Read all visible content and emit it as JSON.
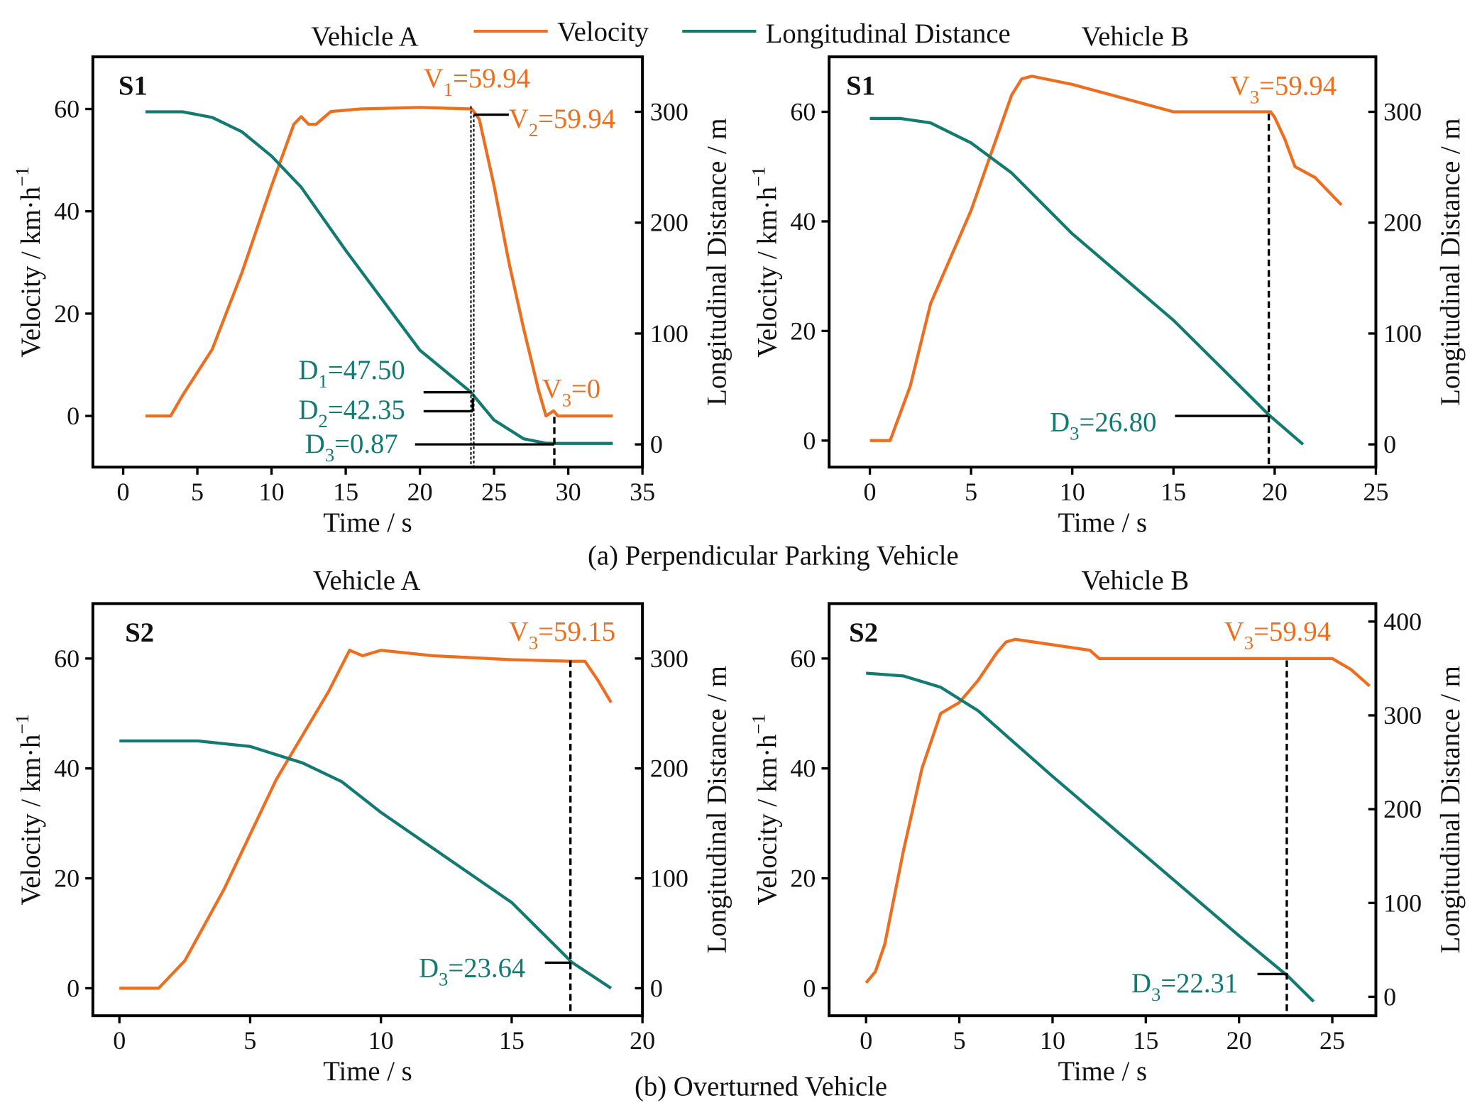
{
  "colors": {
    "velocity": "#EE6E1F",
    "distance": "#137A72",
    "axis": "#000000"
  },
  "legend": {
    "velocity": "Velocity",
    "distance": "Longitudinal Distance"
  },
  "captions": {
    "a": "(a) Perpendicular Parking Vehicle",
    "b": "(b) Overturned Vehicle"
  },
  "chart_data": [
    {
      "type": "line",
      "title": "Vehicle A",
      "scenario": "S1",
      "xlabel": "Time / s",
      "ylabel": "Velocity / km·h",
      "ylabel_sup": "−1",
      "y2label": "Longitudinal Distance / m",
      "xlim": [
        0,
        35
      ],
      "ylim": [
        0,
        60
      ],
      "y2lim": [
        0,
        300
      ],
      "xticks": [
        0,
        5,
        10,
        15,
        20,
        25,
        30,
        35
      ],
      "yticks": [
        0,
        20,
        40,
        60
      ],
      "y2ticks": [
        0,
        100,
        200,
        300
      ],
      "series": [
        {
          "name": "Velocity",
          "axis": "left",
          "points": [
            [
              1.5,
              0
            ],
            [
              3.2,
              0
            ],
            [
              4,
              4
            ],
            [
              6,
              13
            ],
            [
              8,
              28
            ],
            [
              10,
              45
            ],
            [
              11.5,
              57
            ],
            [
              12,
              58.5
            ],
            [
              12.5,
              57
            ],
            [
              13,
              57
            ],
            [
              14,
              59.5
            ],
            [
              16,
              60
            ],
            [
              20,
              60.3
            ],
            [
              23.5,
              60
            ],
            [
              24,
              58
            ],
            [
              25,
              45
            ],
            [
              26,
              30
            ],
            [
              27,
              17
            ],
            [
              28,
              5
            ],
            [
              28.5,
              0
            ],
            [
              29,
              1
            ],
            [
              29.3,
              0
            ],
            [
              33,
              0
            ]
          ]
        },
        {
          "name": "Longitudinal Distance",
          "axis": "right",
          "points": [
            [
              1.5,
              300
            ],
            [
              4,
              300
            ],
            [
              6,
              295
            ],
            [
              8,
              282
            ],
            [
              10,
              260
            ],
            [
              12,
              232
            ],
            [
              15,
              175
            ],
            [
              20,
              85
            ],
            [
              23.4,
              47.5
            ],
            [
              25,
              22
            ],
            [
              27,
              5
            ],
            [
              28.5,
              1
            ],
            [
              29.3,
              0.87
            ],
            [
              33,
              0.87
            ]
          ]
        }
      ],
      "annotations": [
        {
          "main": "V",
          "sub": "1",
          "rest": "=59.94",
          "kind": "velocity"
        },
        {
          "main": "V",
          "sub": "2",
          "rest": "=59.94",
          "kind": "velocity"
        },
        {
          "main": "D",
          "sub": "1",
          "rest": "=47.50",
          "kind": "distance"
        },
        {
          "main": "D",
          "sub": "2",
          "rest": "=42.35",
          "kind": "distance"
        },
        {
          "main": "D",
          "sub": "3",
          "rest": "=0.87",
          "kind": "distance"
        },
        {
          "main": "V",
          "sub": "3",
          "rest": "=0",
          "kind": "velocity"
        }
      ]
    },
    {
      "type": "line",
      "title": "Vehicle B",
      "scenario": "S1",
      "xlabel": "Time / s",
      "ylabel": "Velocity / km·h",
      "ylabel_sup": "−1",
      "y2label": "Longitudinal Distance / m",
      "xlim": [
        0,
        25
      ],
      "ylim": [
        0,
        60
      ],
      "y2lim": [
        0,
        300
      ],
      "xticks": [
        0,
        5,
        10,
        15,
        20,
        25
      ],
      "yticks": [
        0,
        20,
        40,
        60
      ],
      "y2ticks": [
        0,
        100,
        200,
        300
      ],
      "series": [
        {
          "name": "Velocity",
          "axis": "left",
          "points": [
            [
              0,
              0
            ],
            [
              1,
              0
            ],
            [
              2,
              10
            ],
            [
              3,
              25
            ],
            [
              5,
              42
            ],
            [
              7,
              63
            ],
            [
              7.5,
              66
            ],
            [
              8,
              66.5
            ],
            [
              10,
              65
            ],
            [
              12,
              63
            ],
            [
              14,
              61
            ],
            [
              15,
              60
            ],
            [
              19.8,
              60
            ],
            [
              20,
              59
            ],
            [
              20.5,
              55
            ],
            [
              21,
              50
            ],
            [
              22,
              48
            ],
            [
              23.3,
              43
            ]
          ]
        },
        {
          "name": "Longitudinal Distance",
          "axis": "right",
          "points": [
            [
              0,
              294
            ],
            [
              1.5,
              294
            ],
            [
              3,
              290
            ],
            [
              5,
              272
            ],
            [
              7,
              245
            ],
            [
              10,
              190
            ],
            [
              15,
              112
            ],
            [
              19.7,
              26.8
            ],
            [
              21.4,
              0
            ]
          ]
        }
      ],
      "annotations": [
        {
          "main": "V",
          "sub": "3",
          "rest": "=59.94",
          "kind": "velocity"
        },
        {
          "main": "D",
          "sub": "3",
          "rest": "=26.80",
          "kind": "distance"
        }
      ]
    },
    {
      "type": "line",
      "title": "Vehicle A",
      "scenario": "S2",
      "xlabel": "Time / s",
      "ylabel": "Velocity / km·h",
      "ylabel_sup": "−1",
      "y2label": "Longitudinal Distance / m",
      "xlim": [
        0,
        20
      ],
      "ylim": [
        0,
        60
      ],
      "y2lim": [
        0,
        300
      ],
      "xticks": [
        0,
        5,
        10,
        15,
        20
      ],
      "yticks": [
        0,
        20,
        40,
        60
      ],
      "y2ticks": [
        0,
        100,
        200,
        300
      ],
      "series": [
        {
          "name": "Velocity",
          "axis": "left",
          "points": [
            [
              0,
              0
            ],
            [
              1.5,
              0
            ],
            [
              2.5,
              5
            ],
            [
              4,
              18
            ],
            [
              6,
              38
            ],
            [
              8,
              54
            ],
            [
              8.8,
              61.5
            ],
            [
              9.3,
              60.5
            ],
            [
              10,
              61.5
            ],
            [
              12,
              60.5
            ],
            [
              15,
              59.8
            ],
            [
              17.3,
              59.5
            ],
            [
              17.8,
              59.5
            ],
            [
              18.3,
              56
            ],
            [
              18.8,
              52
            ]
          ]
        },
        {
          "name": "Longitudinal Distance",
          "axis": "right",
          "points": [
            [
              0,
              225
            ],
            [
              3,
              225
            ],
            [
              5,
              220
            ],
            [
              7,
              205
            ],
            [
              8.5,
              188
            ],
            [
              10,
              160
            ],
            [
              15,
              78
            ],
            [
              17.3,
              23.6
            ],
            [
              18.8,
              0
            ]
          ]
        }
      ],
      "annotations": [
        {
          "main": "V",
          "sub": "3",
          "rest": "=59.15",
          "kind": "velocity"
        },
        {
          "main": "D",
          "sub": "3",
          "rest": "=23.64",
          "kind": "distance"
        }
      ]
    },
    {
      "type": "line",
      "title": "Vehicle B",
      "scenario": "S2",
      "xlabel": "Time / s",
      "ylabel": "Velocity / km·h",
      "ylabel_sup": "−1",
      "y2label": "Longitudinal Distance / m",
      "xlim": [
        0,
        25
      ],
      "ylim": [
        0,
        60
      ],
      "y2lim": [
        0,
        400
      ],
      "xticks": [
        0,
        5,
        10,
        15,
        20,
        25
      ],
      "yticks": [
        0,
        20,
        40,
        60
      ],
      "y2ticks": [
        0,
        100,
        200,
        300,
        400
      ],
      "series": [
        {
          "name": "Velocity",
          "axis": "left",
          "points": [
            [
              0,
              1
            ],
            [
              0.5,
              3
            ],
            [
              1,
              8
            ],
            [
              2,
              25
            ],
            [
              3,
              40
            ],
            [
              4,
              50
            ],
            [
              5,
              52
            ],
            [
              6,
              56
            ],
            [
              7,
              61
            ],
            [
              7.5,
              63
            ],
            [
              8,
              63.5
            ],
            [
              10,
              62.5
            ],
            [
              12,
              61.5
            ],
            [
              12.5,
              60
            ],
            [
              22.5,
              60
            ],
            [
              25,
              60
            ],
            [
              26,
              58
            ],
            [
              27,
              55
            ]
          ]
        },
        {
          "name": "Longitudinal Distance",
          "axis": "right",
          "points": [
            [
              0,
              345
            ],
            [
              2,
              342
            ],
            [
              4,
              330
            ],
            [
              6,
              305
            ],
            [
              8,
              270
            ],
            [
              10,
              235
            ],
            [
              15,
              150
            ],
            [
              20,
              65
            ],
            [
              22.6,
              22.3
            ],
            [
              24,
              -5
            ]
          ]
        }
      ],
      "annotations": [
        {
          "main": "V",
          "sub": "3",
          "rest": "=59.94",
          "kind": "velocity"
        },
        {
          "main": "D",
          "sub": "3",
          "rest": "=22.31",
          "kind": "distance"
        }
      ]
    }
  ]
}
